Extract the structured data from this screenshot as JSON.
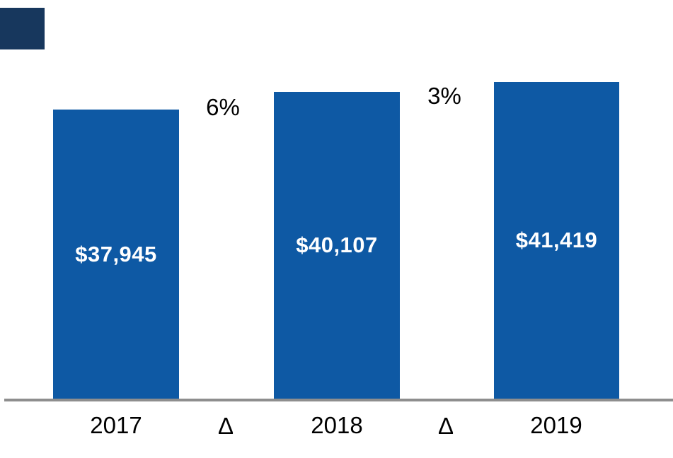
{
  "chart_data": {
    "type": "bar",
    "title": "",
    "xlabel": "",
    "ylabel": "",
    "categories": [
      "2017",
      "2018",
      "2019"
    ],
    "values": [
      37945,
      40107,
      41419
    ],
    "bar_value_labels": [
      "$37,945",
      "$40,107",
      "$41,419"
    ],
    "deltas": [
      {
        "symbol": "Δ",
        "label": "6%"
      },
      {
        "symbol": "Δ",
        "label": "3%"
      }
    ],
    "x_axis_sequence": [
      "2017",
      "Δ",
      "2018",
      "Δ",
      "2019"
    ],
    "ylim": [
      0,
      43000
    ],
    "grid": false,
    "legend_position": "none",
    "bar_color": "#0E59A4",
    "bar_value_text_color": "#FFFFFF",
    "axis_line_color": "#8E8E8E",
    "label_text_color": "#000000"
  },
  "decor": {
    "corner_square_color": "#17375D"
  }
}
